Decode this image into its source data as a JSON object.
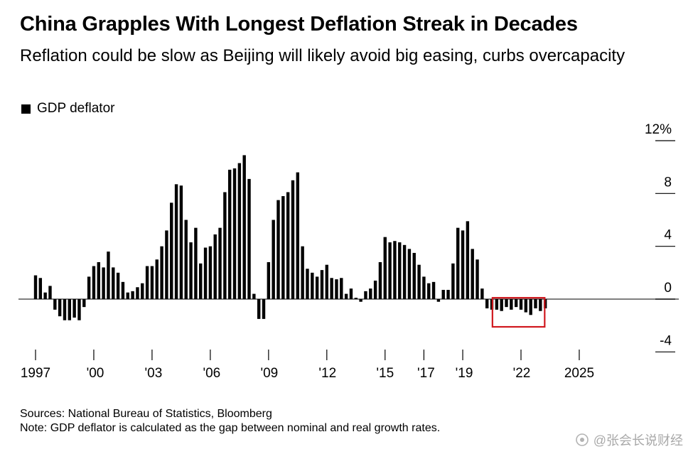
{
  "title": "China Grapples With Longest Deflation Streak in Decades",
  "subtitle": "Reflation could be slow as Beijing will likely avoid big easing, curbs overcapacity",
  "legend": {
    "label": "GDP deflator",
    "color": "#000000"
  },
  "footer": {
    "sources": "Sources: National Bureau of Statistics, Bloomberg",
    "note": "Note: GDP deflator is calculated as the gap between nominal and real growth rates."
  },
  "watermark": {
    "text": "@张会长说财经"
  },
  "chart_data": {
    "type": "bar",
    "series": [
      {
        "name": "GDP deflator",
        "start": "1997-Q1",
        "frequency": "quarterly",
        "color": "#000000",
        "values": [
          1.8,
          1.6,
          0.5,
          1.0,
          -0.8,
          -1.3,
          -1.6,
          -1.6,
          -1.4,
          -1.6,
          -0.6,
          1.7,
          2.5,
          2.8,
          2.4,
          3.6,
          2.4,
          2.0,
          1.3,
          0.5,
          0.6,
          0.9,
          1.2,
          2.5,
          2.5,
          3.0,
          4.0,
          5.2,
          7.3,
          8.7,
          8.6,
          6.0,
          4.3,
          5.4,
          2.7,
          3.9,
          4.0,
          4.9,
          5.4,
          8.1,
          9.8,
          9.9,
          10.3,
          10.9,
          9.1,
          0.4,
          -1.5,
          -1.5,
          2.8,
          6.0,
          7.5,
          7.8,
          8.1,
          9.0,
          9.6,
          4.0,
          2.3,
          2.0,
          1.7,
          2.2,
          2.6,
          1.6,
          1.5,
          1.6,
          0.4,
          0.8,
          0.1,
          -0.2,
          0.6,
          0.8,
          1.4,
          2.8,
          4.7,
          4.3,
          4.4,
          4.3,
          4.1,
          3.8,
          3.5,
          2.6,
          1.7,
          1.2,
          1.3,
          -0.2,
          0.7,
          0.7,
          2.7,
          5.4,
          5.2,
          5.9,
          3.8,
          3.0,
          0.8,
          -0.7,
          -0.8,
          -0.8,
          -0.9,
          -0.6,
          -0.8,
          -0.6,
          -0.8,
          -1.0,
          -1.2,
          -0.7,
          -0.9,
          -0.7
        ]
      }
    ],
    "x_ticks": [
      "1997",
      "'00",
      "'03",
      "'06",
      "'09",
      "'12",
      "'15",
      "'17",
      "'19",
      "'22",
      "2025"
    ],
    "y_ticks": [
      "12%",
      "8",
      "4",
      "0",
      "-4"
    ],
    "ylim": [
      -4,
      12
    ],
    "grid": false,
    "y_axis_position": "right",
    "highlight": {
      "series_start_index": 95,
      "series_end_index": 104,
      "color": "#d0191f"
    }
  }
}
